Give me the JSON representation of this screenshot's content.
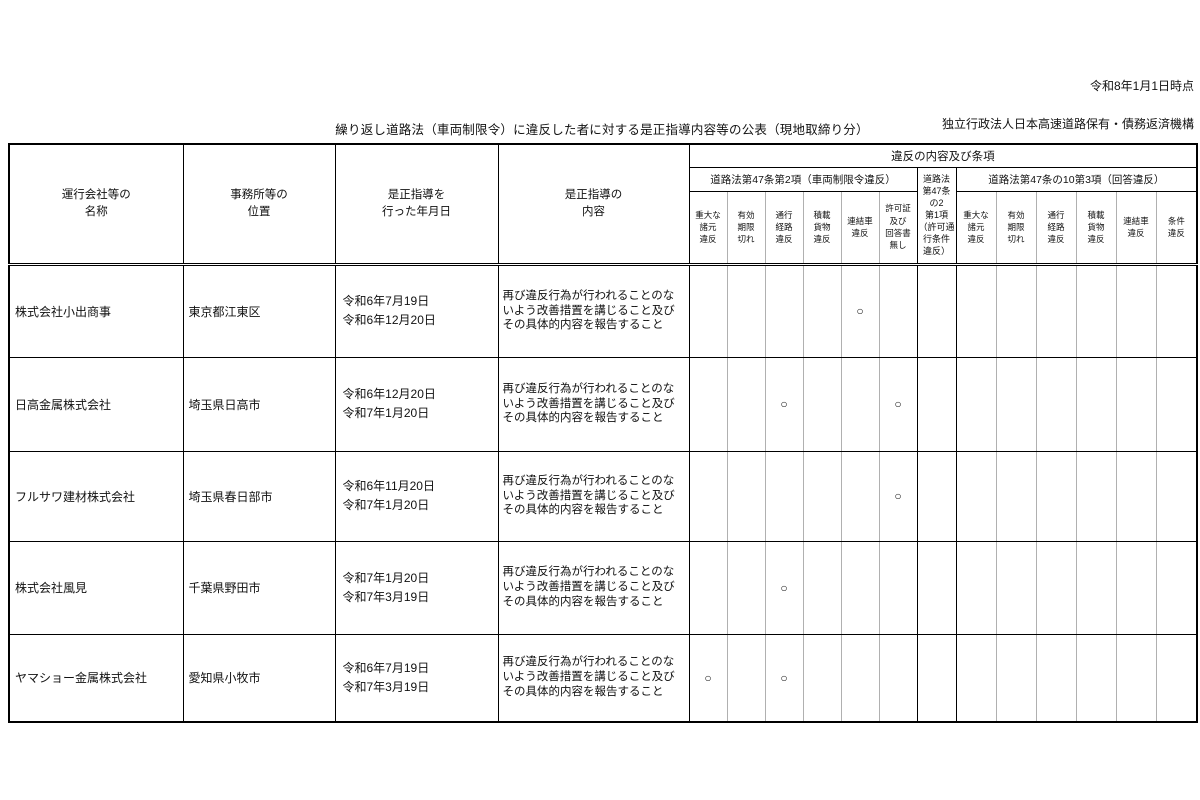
{
  "meta": {
    "as_of": "令和8年1月1日時点",
    "organization": "独立行政法人日本高速道路保有・債務返済機構"
  },
  "title": "繰り返し道路法（車両制限令）に違反した者に対する是正指導内容等の公表（現地取締り分）",
  "table": {
    "header": {
      "company": "運行会社等の\n名称",
      "office": "事務所等の\n位置",
      "guidance_date": "是正指導を\n行った年月日",
      "guidance": "是正指導の\n内容",
      "violation_group": "違反の内容及び条項",
      "section1": "道路法第47条第2項（車両制限令違反）",
      "section1_cols": [
        "重大な\n諸元\n違反",
        "有効\n期限\n切れ",
        "通行\n経路\n違反",
        "積載\n貨物\n違反",
        "連結車\n違反",
        "許可証\n及び\n回答書\n無し"
      ],
      "mid": "道路法\n第47条\nの2\n第1項\n（許可通\n行条件\n違反）",
      "section2": "道路法第47条の10第3項（回答違反）",
      "section2_cols": [
        "重大な\n諸元\n違反",
        "有効\n期限\n切れ",
        "通行\n経路\n違反",
        "積載\n貨物\n違反",
        "連結車\n違反",
        "条件\n違反"
      ]
    },
    "mark_symbol": "○",
    "rows": [
      {
        "company": "株式会社小出商事",
        "office": "東京都江東区",
        "dates": "令和6年7月19日\n令和6年12月20日",
        "guidance": "再び違反行為が行われることのないよう改善措置を講じること及びその具体的内容を報告すること",
        "marks": [
          "",
          "",
          "",
          "",
          "○",
          "",
          "",
          "",
          "",
          "",
          "",
          "",
          ""
        ]
      },
      {
        "company": "日高金属株式会社",
        "office": "埼玉県日高市",
        "dates": "令和6年12月20日\n令和7年1月20日",
        "guidance": "再び違反行為が行われることのないよう改善措置を講じること及びその具体的内容を報告すること",
        "marks": [
          "",
          "",
          "○",
          "",
          "",
          "○",
          "",
          "",
          "",
          "",
          "",
          "",
          ""
        ]
      },
      {
        "company": "フルサワ建材株式会社",
        "office": "埼玉県春日部市",
        "dates": "令和6年11月20日\n令和7年1月20日",
        "guidance": "再び違反行為が行われることのないよう改善措置を講じること及びその具体的内容を報告すること",
        "marks": [
          "",
          "",
          "",
          "",
          "",
          "○",
          "",
          "",
          "",
          "",
          "",
          "",
          ""
        ]
      },
      {
        "company": "株式会社風見",
        "office": "千葉県野田市",
        "dates": "令和7年1月20日\n令和7年3月19日",
        "guidance": "再び違反行為が行われることのないよう改善措置を講じること及びその具体的内容を報告すること",
        "marks": [
          "",
          "",
          "○",
          "",
          "",
          "",
          "",
          "",
          "",
          "",
          "",
          "",
          ""
        ]
      },
      {
        "company": "ヤマショー金属株式会社",
        "office": "愛知県小牧市",
        "dates": "令和6年7月19日\n令和7年3月19日",
        "guidance": "再び違反行為が行われることのないよう改善措置を講じること及びその具体的内容を報告すること",
        "marks": [
          "○",
          "",
          "○",
          "",
          "",
          "",
          "",
          "",
          "",
          "",
          "",
          "",
          ""
        ]
      }
    ]
  }
}
